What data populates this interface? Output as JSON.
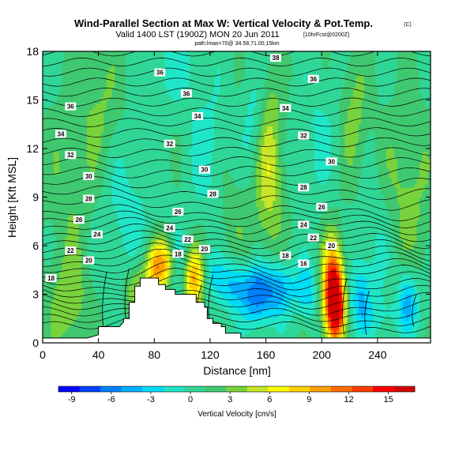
{
  "chart_data": {
    "type": "heatmap",
    "title": "Wind-Parallel Section at Max W: Vertical Velocity & Pot.Temp.",
    "title_mark": "(C)",
    "subtitle": "Valid 1400 LST (1900Z) MON 20 Jun 2011",
    "subtitle_extra": "[10hrFcst@0200Z]",
    "subtitle_small": "path:lmax=70@ 34.58,71.00,15km",
    "xlabel": "Distance [nm]",
    "ylabel": "Height [Kft MSL]",
    "xlim": [
      0,
      278
    ],
    "ylim": [
      0,
      18
    ],
    "x_ticks": [
      "0",
      "40",
      "80",
      "120",
      "160",
      "200",
      "240"
    ],
    "y_ticks": [
      "0",
      "3",
      "6",
      "9",
      "12",
      "15",
      "18"
    ],
    "colorbar": {
      "label": "Vertical Velocity [cm/s]",
      "ticks": [
        "-9",
        "-6",
        "-3",
        "0",
        "3",
        "6",
        "9",
        "12",
        "15"
      ],
      "range": [
        -10,
        17
      ],
      "colors": [
        "#0000ff",
        "#0040ff",
        "#0080ff",
        "#00b0ff",
        "#00dcf5",
        "#20e6c8",
        "#30d696",
        "#40c870",
        "#78d23c",
        "#c8e628",
        "#ffff00",
        "#ffd200",
        "#ffa000",
        "#ff6e00",
        "#ff3c00",
        "#ff0000",
        "#d20000"
      ]
    },
    "terrain": [
      [
        0,
        0.3
      ],
      [
        32,
        0.3
      ],
      [
        40,
        0.5
      ],
      [
        40,
        1
      ],
      [
        55,
        1
      ],
      [
        58,
        1.3
      ],
      [
        58,
        1.5
      ],
      [
        62,
        1.5
      ],
      [
        62,
        2.5
      ],
      [
        66,
        2.5
      ],
      [
        66,
        3.5
      ],
      [
        70,
        3.5
      ],
      [
        70,
        4
      ],
      [
        83,
        4
      ],
      [
        83,
        3.6
      ],
      [
        88,
        3.6
      ],
      [
        88,
        3.3
      ],
      [
        95,
        3.3
      ],
      [
        95,
        3
      ],
      [
        110,
        3
      ],
      [
        110,
        2.5
      ],
      [
        116,
        2.5
      ],
      [
        116,
        2.2
      ],
      [
        118,
        2.2
      ],
      [
        118,
        1.5
      ],
      [
        122,
        1.5
      ],
      [
        122,
        1.2
      ],
      [
        128,
        1.2
      ],
      [
        128,
        1
      ],
      [
        131,
        1
      ],
      [
        131,
        0.6
      ],
      [
        142,
        0.6
      ],
      [
        142,
        0.3
      ],
      [
        278,
        0.3
      ]
    ],
    "contour_labels": [
      {
        "x": 6,
        "y": 4.0,
        "text": "18"
      },
      {
        "x": 13,
        "y": 12.9,
        "text": "34"
      },
      {
        "x": 20,
        "y": 14.6,
        "text": "36"
      },
      {
        "x": 20,
        "y": 11.6,
        "text": "32"
      },
      {
        "x": 33,
        "y": 10.3,
        "text": "30"
      },
      {
        "x": 33,
        "y": 8.9,
        "text": "28"
      },
      {
        "x": 26,
        "y": 7.6,
        "text": "26"
      },
      {
        "x": 39,
        "y": 6.7,
        "text": "24"
      },
      {
        "x": 20,
        "y": 5.7,
        "text": "22"
      },
      {
        "x": 33,
        "y": 5.1,
        "text": "20"
      },
      {
        "x": 84,
        "y": 16.7,
        "text": "36"
      },
      {
        "x": 103,
        "y": 15.4,
        "text": "36"
      },
      {
        "x": 111,
        "y": 14.0,
        "text": "34"
      },
      {
        "x": 91,
        "y": 12.3,
        "text": "32"
      },
      {
        "x": 116,
        "y": 10.7,
        "text": "30"
      },
      {
        "x": 122,
        "y": 9.2,
        "text": "28"
      },
      {
        "x": 97,
        "y": 8.1,
        "text": "26"
      },
      {
        "x": 91,
        "y": 7.1,
        "text": "24"
      },
      {
        "x": 104,
        "y": 6.4,
        "text": "22"
      },
      {
        "x": 116,
        "y": 5.8,
        "text": "20"
      },
      {
        "x": 97,
        "y": 5.5,
        "text": "18"
      },
      {
        "x": 167,
        "y": 17.6,
        "text": "38"
      },
      {
        "x": 194,
        "y": 16.3,
        "text": "36"
      },
      {
        "x": 174,
        "y": 14.5,
        "text": "34"
      },
      {
        "x": 187,
        "y": 12.8,
        "text": "32"
      },
      {
        "x": 207,
        "y": 11.2,
        "text": "30"
      },
      {
        "x": 187,
        "y": 9.6,
        "text": "28"
      },
      {
        "x": 200,
        "y": 8.4,
        "text": "26"
      },
      {
        "x": 187,
        "y": 7.3,
        "text": "24"
      },
      {
        "x": 194,
        "y": 6.5,
        "text": "22"
      },
      {
        "x": 207,
        "y": 6.0,
        "text": "20"
      },
      {
        "x": 174,
        "y": 5.4,
        "text": "18"
      },
      {
        "x": 187,
        "y": 4.9,
        "text": "16"
      }
    ],
    "field_features": [
      {
        "x": 68,
        "y": 3.2,
        "w": 4.5,
        "sx": 6,
        "sy": 1.2
      },
      {
        "x": 86,
        "y": 5.0,
        "w": 7.0,
        "sx": 7,
        "sy": 1.0
      },
      {
        "x": 81,
        "y": 4.2,
        "w": 4.0,
        "sx": 5,
        "sy": 1.0
      },
      {
        "x": 108,
        "y": 4.0,
        "w": 8.5,
        "sx": 6,
        "sy": 1.3
      },
      {
        "x": 98,
        "y": 4.8,
        "w": -3.5,
        "sx": 5,
        "sy": 1.4
      },
      {
        "x": 120,
        "y": 4.3,
        "w": -3.0,
        "sx": 5,
        "sy": 1.0
      },
      {
        "x": 136,
        "y": 3.6,
        "w": -5.0,
        "sx": 8,
        "sy": 1.2
      },
      {
        "x": 154,
        "y": 3.0,
        "w": -7.0,
        "sx": 8,
        "sy": 1.3
      },
      {
        "x": 170,
        "y": 3.4,
        "w": -5.0,
        "sx": 7,
        "sy": 1.2
      },
      {
        "x": 189,
        "y": 3.2,
        "w": -4.0,
        "sx": 6,
        "sy": 1.2
      },
      {
        "x": 208,
        "y": 3.2,
        "w": 16.0,
        "sx": 5,
        "sy": 2.0
      },
      {
        "x": 211,
        "y": 2.0,
        "w": 8.0,
        "sx": 4,
        "sy": 1.3
      },
      {
        "x": 228,
        "y": 2.8,
        "w": -4.0,
        "sx": 5,
        "sy": 1.5
      },
      {
        "x": 262,
        "y": 2.8,
        "w": -5.0,
        "sx": 5,
        "sy": 1.4
      },
      {
        "x": 248,
        "y": 1.6,
        "w": -1.5,
        "sx": 18,
        "sy": 0.9
      },
      {
        "x": 162,
        "y": 11.0,
        "w": 5.0,
        "sx": 7,
        "sy": 3.5
      },
      {
        "x": 152,
        "y": 13.5,
        "w": -2.5,
        "sx": 6,
        "sy": 2.5
      },
      {
        "x": 118,
        "y": 12.0,
        "w": -2.0,
        "sx": 10,
        "sy": 3.0
      },
      {
        "x": 198,
        "y": 13.0,
        "w": -1.5,
        "sx": 10,
        "sy": 3.0
      },
      {
        "x": 42,
        "y": 15.0,
        "w": 2.0,
        "sx": 10,
        "sy": 3.0
      },
      {
        "x": 92,
        "y": 17.0,
        "w": -2.0,
        "sx": 12,
        "sy": 1.5
      },
      {
        "x": 260,
        "y": 9.0,
        "w": 2.5,
        "sx": 14,
        "sy": 4.0
      },
      {
        "x": 223,
        "y": 14.0,
        "w": 2.5,
        "sx": 7,
        "sy": 3.0
      },
      {
        "x": 20,
        "y": 10.0,
        "w": 1.8,
        "sx": 12,
        "sy": 4.0
      },
      {
        "x": 60,
        "y": 8.0,
        "w": -2.0,
        "sx": 12,
        "sy": 3.0
      },
      {
        "x": 18,
        "y": 2.5,
        "w": 3.0,
        "sx": 10,
        "sy": 2.0
      },
      {
        "x": 138,
        "y": 7.0,
        "w": 1.5,
        "sx": 10,
        "sy": 3.0
      },
      {
        "x": 240,
        "y": 6.0,
        "w": -2.0,
        "sx": 10,
        "sy": 3.0
      }
    ],
    "field_base": 0.8,
    "grid": false
  }
}
